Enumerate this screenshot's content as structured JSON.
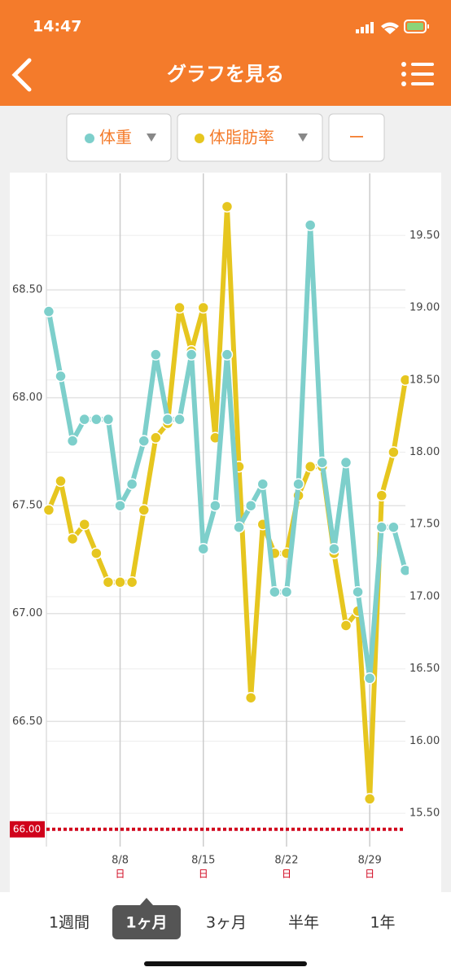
{
  "status_bar": {
    "time": "14:47"
  },
  "header": {
    "title": "グラフを見る"
  },
  "toolbar": {
    "buttons": [
      "体重",
      "体脂肪率",
      "ー"
    ]
  },
  "chart_data": {
    "type": "line",
    "x": [
      2,
      3,
      4,
      5,
      6,
      7,
      8,
      9,
      10,
      11,
      12,
      13,
      14,
      15,
      16,
      17,
      18,
      19,
      20,
      21,
      22,
      23,
      24,
      25,
      26,
      27,
      28,
      29,
      30,
      31,
      32
    ],
    "xlim": [
      1.8,
      32
    ],
    "xticks": [
      {
        "value": 8,
        "label": "8/8",
        "weekday": "日"
      },
      {
        "value": 15,
        "label": "8/15",
        "weekday": "日"
      },
      {
        "value": 22,
        "label": "8/22",
        "weekday": "日"
      },
      {
        "value": 29,
        "label": "8/29",
        "weekday": "日"
      }
    ],
    "ylim": [
      65.92,
      69.04
    ],
    "yticks": [
      {
        "value": 66.5,
        "label": "66.50"
      },
      {
        "value": 67,
        "label": "67.00"
      },
      {
        "value": 67.5,
        "label": "67.50"
      },
      {
        "value": 68,
        "label": "68.00"
      },
      {
        "value": 68.5,
        "label": "68.50"
      }
    ],
    "y2lim": [
      15.27,
      19.93
    ],
    "y2ticks": [
      {
        "value": 15.5,
        "label": "15.50"
      },
      {
        "value": 16,
        "label": "16.00"
      },
      {
        "value": 16.5,
        "label": "16.50"
      },
      {
        "value": 17,
        "label": "17.00"
      },
      {
        "value": 17.5,
        "label": "17.50"
      },
      {
        "value": 18,
        "label": "18.00"
      },
      {
        "value": 18.5,
        "label": "18.50"
      },
      {
        "value": 19,
        "label": "19.00"
      },
      {
        "value": 19.5,
        "label": "19.50"
      }
    ],
    "grid": true,
    "target": {
      "value": 66,
      "label": "66.00",
      "color": "#d0021b"
    },
    "series": [
      {
        "name": "体重",
        "color": "#7dcfcb",
        "values": [
          68.4,
          68.1,
          67.8,
          67.9,
          67.9,
          67.9,
          67.5,
          67.6,
          67.8,
          68.2,
          67.9,
          67.9,
          68.2,
          67.3,
          67.5,
          68.2,
          67.4,
          67.5,
          67.6,
          67.1,
          67.1,
          67.6,
          68.8,
          67.7,
          67.3,
          67.7,
          67.1,
          66.7,
          67.4,
          67.4,
          67.2
        ]
      },
      {
        "name": "体脂肪率",
        "color": "#e6c61f",
        "axis": "y2",
        "values": [
          17.6,
          17.8,
          17.4,
          17.5,
          17.3,
          17.1,
          17.1,
          17.1,
          17.6,
          18.1,
          18.2,
          19.0,
          18.7,
          19.0,
          18.1,
          19.7,
          17.9,
          16.3,
          17.5,
          17.3,
          17.3,
          17.7,
          17.9,
          17.9,
          17.3,
          16.8,
          16.9,
          15.6,
          17.7,
          18.0,
          18.5
        ]
      }
    ]
  },
  "tabs": {
    "items": [
      "1週間",
      "1ヶ月",
      "3ヶ月",
      "半年",
      "1年"
    ],
    "selected": 1
  }
}
